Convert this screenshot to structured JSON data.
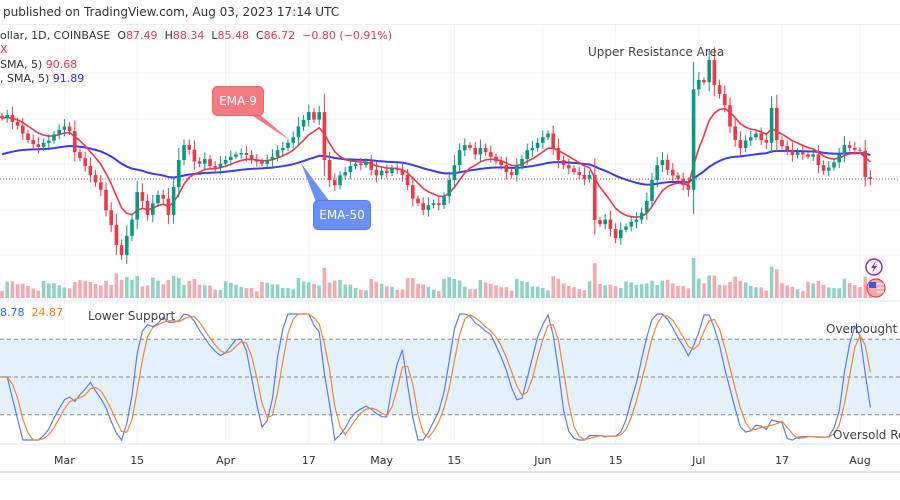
{
  "header": {
    "published": "published on TradingView.com, Aug 03, 2023 17:14 UTC"
  },
  "legend": {
    "symbol": "ollar, 1D, COINBASE",
    "open_label": "O",
    "open": "87.49",
    "high_label": "H",
    "high": "88.34",
    "low_label": "L",
    "low": "85.48",
    "close_label": "C",
    "close": "86.72",
    "change": "−0.80 (−0.91%)",
    "line2": "X",
    "ema9_label": "SMA, 5)",
    "ema9_value": "90.68",
    "ema50_label": ", SMA, 5)",
    "ema50_value": "91.89",
    "stoch_k": "8.78",
    "stoch_d": "24.87"
  },
  "annotations": {
    "upper_resistance": "Upper Resistance Area",
    "lower_support": "Lower Support",
    "overbought": "Overbought R",
    "oversold": "Oversold Reg",
    "ema9_callout": "EMA-9",
    "ema50_callout": "EMA-50"
  },
  "colors": {
    "up": "#089981",
    "down": "#f23645",
    "ema9": "#f23645",
    "ema50": "#3a3af0",
    "stoch_k": "#5b7cf7",
    "stoch_d": "#f5862d",
    "band": "#e3f1fc"
  },
  "icons": [
    "lightning-icon",
    "us-flag-icon"
  ],
  "chart_data": {
    "type": "candlestick",
    "start_date": "2023-02-17",
    "interval": "1D",
    "closes": [
      99.8,
      100.5,
      99.0,
      98.2,
      96.5,
      95.1,
      94.2,
      93.6,
      94.5,
      95.0,
      96.3,
      97.3,
      98.0,
      97.0,
      92.5,
      91.2,
      89.5,
      87.6,
      86.0,
      84.4,
      80.0,
      76.8,
      72.5,
      70.4,
      74.5,
      78.0,
      83.9,
      82.0,
      79.0,
      81.5,
      83.3,
      82.5,
      79.0,
      85.0,
      90.8,
      94.0,
      93.0,
      90.5,
      90.0,
      91.0,
      89.5,
      89.1,
      90.0,
      90.8,
      91.5,
      92.0,
      92.3,
      91.9,
      90.8,
      90.5,
      90.0,
      90.8,
      91.5,
      92.9,
      93.4,
      94.5,
      95.7,
      98.0,
      99.4,
      101.1,
      99.5,
      101.1,
      90.8,
      86.5,
      85.4,
      87.5,
      88.2,
      89.5,
      90.0,
      89.7,
      90.5,
      88.7,
      87.5,
      88.5,
      88.0,
      89.0,
      88.7,
      87.6,
      85.4,
      82.5,
      81.5,
      80.1,
      81.1,
      81.5,
      81.1,
      83.0,
      86.5,
      89.7,
      92.9,
      94.0,
      93.4,
      92.0,
      93.4,
      92.5,
      91.5,
      90.5,
      89.7,
      88.2,
      87.6,
      89.5,
      91.0,
      92.9,
      93.4,
      94.5,
      95.7,
      96.5,
      93.4,
      90.8,
      89.7,
      89.0,
      88.2,
      87.6,
      86.8,
      87.6,
      77.9,
      77.0,
      78.0,
      76.0,
      74.0,
      75.8,
      76.5,
      77.5,
      78.0,
      79.5,
      82.0,
      86.5,
      89.7,
      90.8,
      88.7,
      87.5,
      86.8,
      85.4,
      84.4,
      106.0,
      108.0,
      107.5,
      112.3,
      106.9,
      105.0,
      102.6,
      98.0,
      95.1,
      93.4,
      95.0,
      95.7,
      96.5,
      95.1,
      94.5,
      102.0,
      95.1,
      93.8,
      92.9,
      91.9,
      92.5,
      92.0,
      91.5,
      92.0,
      89.7,
      88.5,
      89.2,
      90.3,
      92.0,
      94.0,
      93.4,
      93.0,
      92.8,
      87.1,
      86.72
    ],
    "last_price": 86.72,
    "indicators": [
      "EMA-9",
      "EMA-50",
      "Volume",
      "Stoch RSI"
    ],
    "stoch_levels": {
      "overbought": 80,
      "middle": 50,
      "oversold": 20
    },
    "x_ticks": [
      {
        "label": "Mar",
        "date": "2023-03-01"
      },
      {
        "label": "15",
        "date": "2023-03-15"
      },
      {
        "label": "Apr",
        "date": "2023-04-01"
      },
      {
        "label": "17",
        "date": "2023-04-17"
      },
      {
        "label": "May",
        "date": "2023-05-01"
      },
      {
        "label": "15",
        "date": "2023-05-15"
      },
      {
        "label": "Jun",
        "date": "2023-06-01"
      },
      {
        "label": "15",
        "date": "2023-06-15"
      },
      {
        "label": "Jul",
        "date": "2023-07-01"
      },
      {
        "label": "17",
        "date": "2023-07-17"
      },
      {
        "label": "Aug",
        "date": "2023-08-01"
      }
    ],
    "grid": true
  }
}
